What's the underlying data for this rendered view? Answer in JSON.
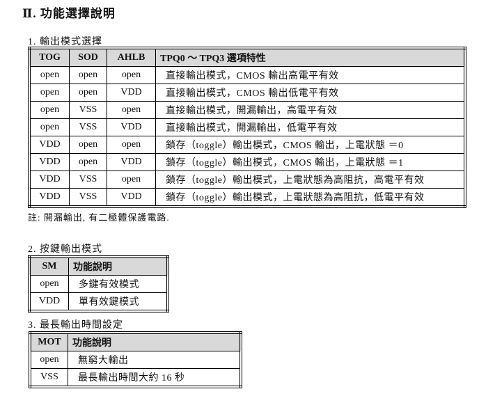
{
  "title": "Ⅱ. 功能選擇說明",
  "section1": {
    "heading": "1.  輸出模式選擇",
    "headers": [
      "TOG",
      "SOD",
      "AHLB",
      "TPQ0 ～ TPQ3 選項特性"
    ],
    "rows": [
      [
        "open",
        "open",
        "open",
        "直接輸出模式，CMOS 輸出高電平有效"
      ],
      [
        "open",
        "open",
        "VDD",
        "直接輸出模式，CMOS 輸出低電平有效"
      ],
      [
        "open",
        "VSS",
        "open",
        "直接輸出模式，開漏輸出，高電平有效"
      ],
      [
        "open",
        "VSS",
        "VDD",
        "直接輸出模式，開漏輸出，低電平有效"
      ],
      [
        "VDD",
        "open",
        "open",
        "鎖存（toggle）輸出模式，CMOS 輸出，上電狀態 ＝0"
      ],
      [
        "VDD",
        "open",
        "VDD",
        "鎖存（toggle）輸出模式，CMOS 輸出，上電狀態 ＝1"
      ],
      [
        "VDD",
        "VSS",
        "open",
        "鎖存（toggle）輸出模式，上電狀態為高阻抗，高電平有效"
      ],
      [
        "VDD",
        "VSS",
        "VDD",
        "鎖存（toggle）輸出模式，上電狀態為高阻抗，低電平有效"
      ]
    ],
    "note": "註: 開漏輸出, 有二極體保護電路."
  },
  "section2": {
    "heading": "2.  按鍵輸出模式",
    "headers": [
      "SM",
      "功能說明"
    ],
    "rows": [
      [
        "open",
        "多鍵有效模式"
      ],
      [
        "VDD",
        "單有效鍵模式"
      ]
    ]
  },
  "section3": {
    "heading": "3.  最長輸出時間設定",
    "headers": [
      "MOT",
      "功能說明"
    ],
    "rows": [
      [
        "open",
        "無窮大輸出"
      ],
      [
        "VSS",
        "最長輸出時間大約 16  秒"
      ]
    ]
  }
}
